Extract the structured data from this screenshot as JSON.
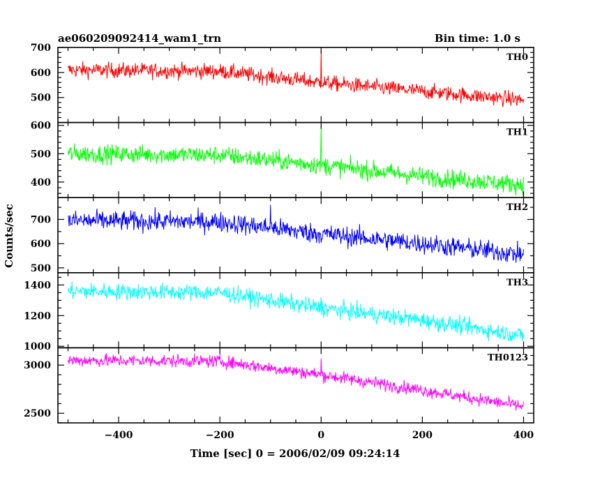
{
  "header": {
    "title": "ae060209092414_wam1_trn",
    "bin_time": "Bin time: 1.0 s"
  },
  "chart_data": {
    "type": "line",
    "xlabel": "Time [sec] 0 = 2006/02/09 09:24:14",
    "ylabel": "Counts/sec",
    "xlim": [
      -520,
      420
    ],
    "x_ticks": [
      -400,
      -200,
      0,
      200,
      400
    ],
    "grid": false,
    "panels": [
      {
        "label": "TH0",
        "color": "#ff0000",
        "ylim": [
          400,
          700
        ],
        "y_ticks": [
          500,
          600,
          700
        ],
        "trend": [
          {
            "x": -500,
            "y": 610
          },
          {
            "x": -200,
            "y": 605
          },
          {
            "x": 0,
            "y": 560
          },
          {
            "x": 200,
            "y": 525
          },
          {
            "x": 400,
            "y": 490
          }
        ],
        "noise": 28,
        "spikes": [
          {
            "x": 0,
            "y": 690
          }
        ]
      },
      {
        "label": "TH1",
        "color": "#00ff00",
        "ylim": [
          345,
          610
        ],
        "y_ticks": [
          400,
          500,
          600
        ],
        "trend": [
          {
            "x": -500,
            "y": 500
          },
          {
            "x": -200,
            "y": 495
          },
          {
            "x": 0,
            "y": 460
          },
          {
            "x": 200,
            "y": 420
          },
          {
            "x": 400,
            "y": 390
          }
        ],
        "noise": 30,
        "spikes": [
          {
            "x": 0,
            "y": 600
          }
        ]
      },
      {
        "label": "TH2",
        "color": "#0000ff",
        "ylim": [
          480,
          790
        ],
        "y_ticks": [
          500,
          600,
          700
        ],
        "trend": [
          {
            "x": -500,
            "y": 695
          },
          {
            "x": -200,
            "y": 690
          },
          {
            "x": 0,
            "y": 640
          },
          {
            "x": 200,
            "y": 600
          },
          {
            "x": 400,
            "y": 555
          }
        ],
        "noise": 38,
        "spikes": [
          {
            "x": -100,
            "y": 760
          }
        ]
      },
      {
        "label": "TH3",
        "color": "#00ffff",
        "ylim": [
          990,
          1480
        ],
        "y_ticks": [
          1000,
          1200,
          1400
        ],
        "trend": [
          {
            "x": -500,
            "y": 1360
          },
          {
            "x": -200,
            "y": 1350
          },
          {
            "x": 0,
            "y": 1250
          },
          {
            "x": 200,
            "y": 1170
          },
          {
            "x": 400,
            "y": 1070
          }
        ],
        "noise": 50,
        "spikes": [
          {
            "x": 0,
            "y": 1320
          }
        ]
      },
      {
        "label": "TH0123",
        "color": "#ff00ff",
        "ylim": [
          2400,
          3180
        ],
        "y_ticks": [
          2500,
          3000
        ],
        "trend": [
          {
            "x": -500,
            "y": 3050
          },
          {
            "x": -200,
            "y": 3040
          },
          {
            "x": 0,
            "y": 2900
          },
          {
            "x": 200,
            "y": 2740
          },
          {
            "x": 400,
            "y": 2570
          }
        ],
        "noise": 60,
        "spikes": [
          {
            "x": 0,
            "y": 3070
          }
        ]
      }
    ]
  }
}
